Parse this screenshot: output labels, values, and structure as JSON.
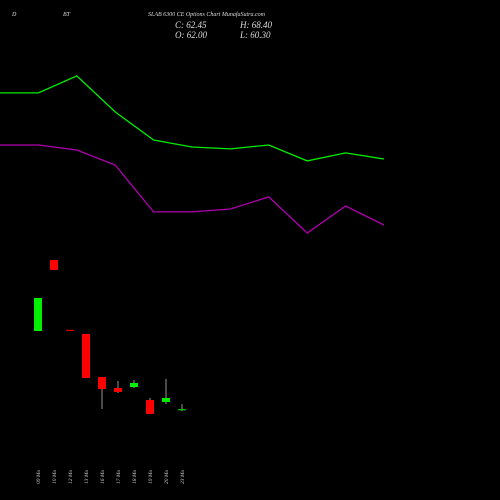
{
  "chart_data": {
    "type": "candlestick",
    "label_left": "D",
    "label_mid": "BT",
    "title": "SLAB 6300 CE Options Chart MunafaSutra.com",
    "close_label": "C: 62.45",
    "high_label": "H: 68.40",
    "open_label": "O: 62.00",
    "low_label": "L: 60.30",
    "ylim": [
      50,
      247
    ],
    "up_color": "#00ee00",
    "down_color": "#ff0000",
    "candles": [
      {
        "date": "09 Mo",
        "open": 153.1,
        "high": 191.4,
        "low": 153.1,
        "close": 191.4
      },
      {
        "date": "10 Mo",
        "open": 235.4,
        "high": 235.4,
        "low": 223.9,
        "close": 223.9
      },
      {
        "date": "12 Mo",
        "open": 154.5,
        "high": 154.5,
        "low": 154.0,
        "close": 154.0
      },
      {
        "date": "13 Mo",
        "open": 149.7,
        "high": 149.7,
        "low": 98.7,
        "close": 98.7
      },
      {
        "date": "16 Mo",
        "open": 99.8,
        "high": 99.8,
        "low": 62.7,
        "close": 85.9
      },
      {
        "date": "17 Mo",
        "open": 87.1,
        "high": 95.2,
        "low": 81.3,
        "close": 82.5
      },
      {
        "date": "18 Mo",
        "open": 88.2,
        "high": 96.4,
        "low": 87.1,
        "close": 92.9
      },
      {
        "date": "19 Mo",
        "open": 73.2,
        "high": 75.5,
        "low": 57.0,
        "close": 57.0
      },
      {
        "date": "20 Mo",
        "open": 70.9,
        "high": 97.6,
        "low": 68.5,
        "close": 75.5
      },
      {
        "date": "23 Mo",
        "open": 62.0,
        "high": 68.4,
        "low": 60.3,
        "close": 62.45
      }
    ],
    "lines": [
      {
        "color": "#00ee00",
        "values": [
          429.0,
          429.0,
          448.7,
          407.0,
          374.5,
          366.4,
          364.1,
          368.7,
          350.2,
          359.5,
          352.5
        ]
      },
      {
        "color": "#b000b0",
        "values": [
          368.7,
          368.7,
          362.9,
          345.5,
          291.1,
          291.1,
          294.5,
          308.5,
          266.7,
          298.0,
          276.0
        ]
      }
    ]
  }
}
